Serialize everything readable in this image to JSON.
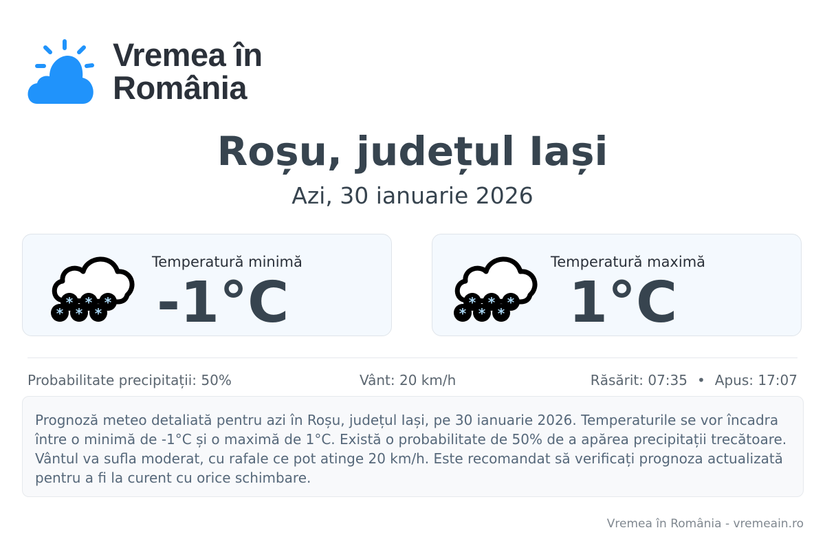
{
  "brand": {
    "line1": "Vremea în",
    "line2": "România",
    "color": "#2093fb"
  },
  "title": "Roșu, județul Iași",
  "date": "Azi, 30 ianuarie 2026",
  "cards": [
    {
      "label": "Temperatură minimă",
      "value": "-1°C",
      "icon": "snow-cloud-icon"
    },
    {
      "label": "Temperatură maximă",
      "value": "1°C",
      "icon": "snow-cloud-icon"
    }
  ],
  "stats": {
    "precip": "Probabilitate precipitații: 50%",
    "wind": "Vânt: 20 km/h",
    "sunrise": "Răsărit: 07:35",
    "sep": "•",
    "sunset": "Apus: 17:07"
  },
  "description": "Prognoză meteo detaliată pentru azi în Roșu, județul Iași, pe 30 ianuarie 2026. Temperaturile se vor încadra între o minimă de -1°C și o maximă de 1°C. Există o probabilitate de 50% de a apărea precipitații trecătoare. Vântul va sufla moderat, cu rafale ce pot atinge 20 km/h. Este recomandat să verificați prognoza actualizată pentru a fi la curent cu orice schimbare.",
  "footer": "Vremea în România - vremeain.ro"
}
